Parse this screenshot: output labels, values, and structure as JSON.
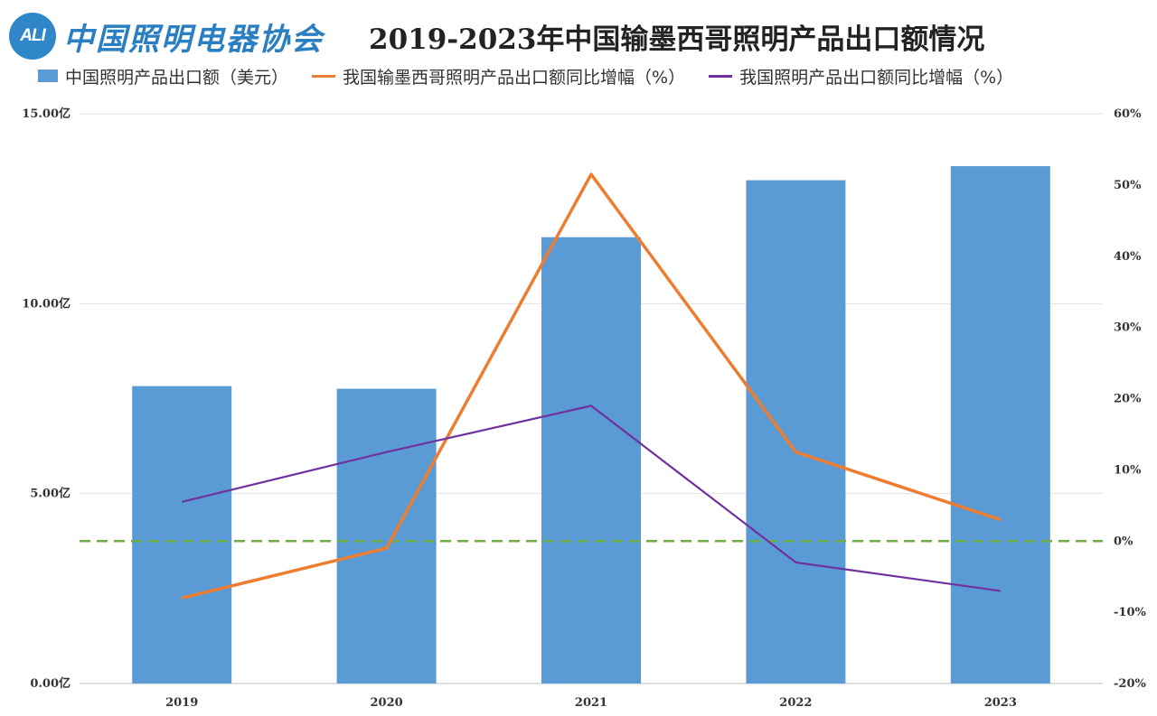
{
  "logo": {
    "badge_text": "ALI",
    "org_name": "中国照明电器协会"
  },
  "chart_data": {
    "type": "bar",
    "title": "2019-2023年中国输墨西哥照明产品出口额情况",
    "categories": [
      "2019",
      "2020",
      "2021",
      "2022",
      "2023"
    ],
    "series": [
      {
        "name": "中国照明产品出口额（美元）",
        "kind": "bar",
        "axis": "left",
        "color": "#5b9bd5",
        "values": [
          783000000,
          776000000,
          1175000000,
          1325000000,
          1362000000
        ]
      },
      {
        "name": "我国输墨西哥照明产品出口额同比增幅（%）",
        "kind": "line",
        "axis": "right",
        "color": "#ed7d31",
        "values": [
          -8,
          -1,
          51.5,
          12.5,
          3
        ]
      },
      {
        "name": "我国照明产品出口额同比增幅（%）",
        "kind": "line",
        "axis": "right",
        "color": "#7030a0",
        "values": [
          5.5,
          12.5,
          19,
          -3,
          -7
        ]
      }
    ],
    "reference_line": {
      "axis": "right",
      "value": 0,
      "style": "dashed",
      "color": "#70ad47"
    },
    "y_left": {
      "ylim": [
        0,
        1500000000
      ],
      "ticks": [
        "0.00亿",
        "5.00亿",
        "10.00亿",
        "15.00亿"
      ],
      "tick_values": [
        0,
        500000000,
        1000000000,
        1500000000
      ]
    },
    "y_right": {
      "ylim": [
        -20,
        60
      ],
      "ticks": [
        "-20%",
        "-10%",
        "0%",
        "10%",
        "20%",
        "30%",
        "40%",
        "50%",
        "60%"
      ],
      "tick_values": [
        -20,
        -10,
        0,
        10,
        20,
        30,
        40,
        50,
        60
      ]
    },
    "grid": true,
    "legend_position": "top"
  }
}
